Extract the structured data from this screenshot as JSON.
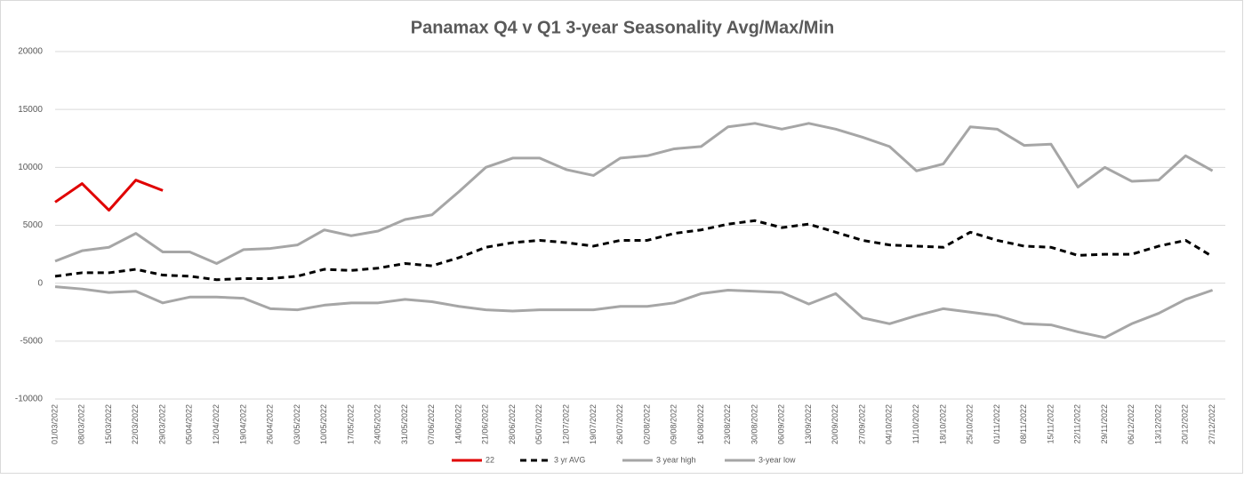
{
  "chart_data": {
    "type": "line",
    "title": "Panamax Q4 v Q1 3-year Seasonality Avg/Max/Min",
    "categories": [
      "01/03/2022",
      "08/03/2022",
      "15/03/2022",
      "22/03/2022",
      "29/03/2022",
      "05/04/2022",
      "12/04/2022",
      "19/04/2022",
      "26/04/2022",
      "03/05/2022",
      "10/05/2022",
      "17/05/2022",
      "24/05/2022",
      "31/05/2022",
      "07/06/2022",
      "14/06/2022",
      "21/06/2022",
      "28/06/2022",
      "05/07/2022",
      "12/07/2022",
      "19/07/2022",
      "26/07/2022",
      "02/08/2022",
      "09/08/2022",
      "16/08/2022",
      "23/08/2022",
      "30/08/2022",
      "06/09/2022",
      "13/09/2022",
      "20/09/2022",
      "27/09/2022",
      "04/10/2022",
      "11/10/2022",
      "18/10/2022",
      "25/10/2022",
      "01/11/2022",
      "08/11/2022",
      "15/11/2022",
      "22/11/2022",
      "29/11/2022",
      "06/12/2022",
      "13/12/2022",
      "20/12/2022",
      "27/12/2022"
    ],
    "series": [
      {
        "name": "22",
        "color": "#e00000",
        "dash": false,
        "values": [
          7000,
          8600,
          6300,
          8900,
          8000,
          null,
          null,
          null,
          null,
          null,
          null,
          null,
          null,
          null,
          null,
          null,
          null,
          null,
          null,
          null,
          null,
          null,
          null,
          null,
          null,
          null,
          null,
          null,
          null,
          null,
          null,
          null,
          null,
          null,
          null,
          null,
          null,
          null,
          null,
          null,
          null,
          null,
          null,
          null
        ]
      },
      {
        "name": "3 yr AVG",
        "color": "#000000",
        "dash": true,
        "values": [
          600,
          900,
          900,
          1200,
          700,
          600,
          300,
          400,
          400,
          600,
          1200,
          1100,
          1300,
          1700,
          1500,
          2200,
          3100,
          3500,
          3700,
          3500,
          3200,
          3700,
          3700,
          4300,
          4600,
          5100,
          5400,
          4800,
          5100,
          4400,
          3700,
          3300,
          3200,
          3100,
          4400,
          3700,
          3200,
          3100,
          2400,
          2500,
          2500,
          3200,
          3700,
          2300
        ]
      },
      {
        "name": "3 year high",
        "color": "#a6a6a6",
        "dash": false,
        "values": [
          1900,
          2800,
          3100,
          4300,
          2700,
          2700,
          1700,
          2900,
          3000,
          3300,
          4600,
          4100,
          4500,
          5500,
          5900,
          7900,
          10000,
          10800,
          10800,
          9800,
          9300,
          10800,
          11000,
          11600,
          11800,
          13500,
          13800,
          13300,
          13800,
          13300,
          12600,
          11800,
          9700,
          10300,
          13500,
          13300,
          11900,
          12000,
          8300,
          10000,
          8800,
          8900,
          11000,
          9700
        ]
      },
      {
        "name": "3-year low",
        "color": "#a6a6a6",
        "dash": false,
        "values": [
          -300,
          -500,
          -800,
          -700,
          -1700,
          -1200,
          -1200,
          -1300,
          -2200,
          -2300,
          -1900,
          -1700,
          -1700,
          -1400,
          -1600,
          -2000,
          -2300,
          -2400,
          -2300,
          -2300,
          -2300,
          -2000,
          -2000,
          -1700,
          -900,
          -600,
          -700,
          -800,
          -1800,
          -900,
          -3000,
          -3500,
          -2800,
          -2200,
          -2500,
          -2800,
          -3500,
          -3600,
          -4200,
          -4700,
          -3500,
          -2600,
          -1400,
          -600
        ]
      }
    ],
    "ylim": [
      -10000,
      20000
    ],
    "yticks": [
      -10000,
      -5000,
      0,
      5000,
      10000,
      15000,
      20000
    ],
    "grid": true
  }
}
